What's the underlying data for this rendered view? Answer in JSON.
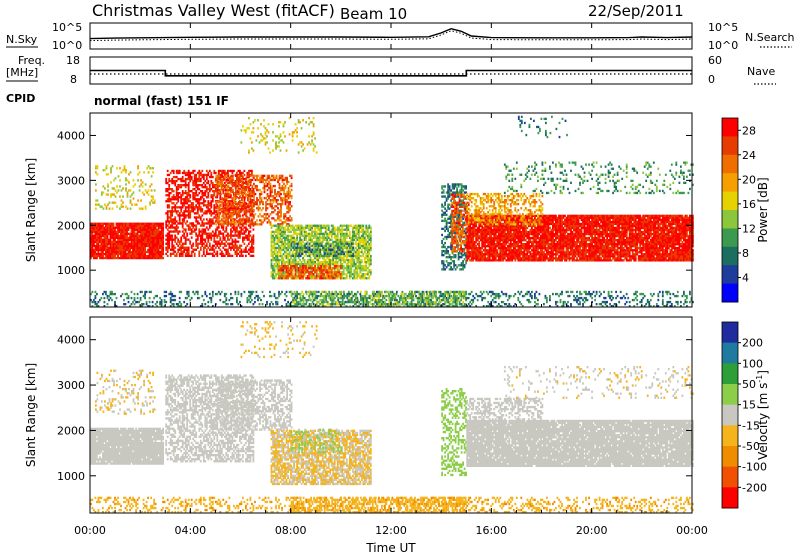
{
  "header": {
    "title": "Christmas Valley West (fitACF)",
    "beam": "Beam 10",
    "date": "22/Sep/2011"
  },
  "left_labels": {
    "nsky": "N.Sky",
    "freq_line1": "Freq.",
    "freq_line2": "[MHz]",
    "cpid": "CPID"
  },
  "right_labels": {
    "nsearch": "N.Search",
    "nave": "Nave"
  },
  "cpid_text": "normal (fast) 151 IF",
  "chart_data": [
    {
      "type": "line",
      "panel": "noise",
      "ylabel_left": "N.Sky",
      "ylabel_right": "N.Search",
      "y_ticks_left": [
        "10^5",
        "10^0"
      ],
      "y_ticks_right": [
        "10^5",
        "10^0"
      ],
      "xlim_hours": [
        0,
        24
      ],
      "series": [
        {
          "name": "N.Sky",
          "x": [
            0,
            1,
            2,
            4,
            6,
            8,
            10,
            12,
            13.5,
            14,
            14.4,
            14.8,
            15.2,
            16,
            18,
            20,
            21.5,
            22,
            23,
            24
          ],
          "y": [
            0.4,
            0.42,
            0.43,
            0.45,
            0.46,
            0.46,
            0.46,
            0.45,
            0.47,
            0.62,
            0.78,
            0.68,
            0.5,
            0.44,
            0.43,
            0.43,
            0.44,
            0.46,
            0.44,
            0.46
          ]
        }
      ]
    },
    {
      "type": "line",
      "panel": "frequency",
      "ylabel_left": "Freq. [MHz]",
      "ylabel_right": "Nave",
      "y_ticks_left": [
        "18",
        "8"
      ],
      "y_ticks_right": [
        "60",
        "0"
      ],
      "xlim_hours": [
        0,
        24
      ],
      "series": [
        {
          "name": "Freq.",
          "x": [
            0,
            3,
            3,
            15,
            15,
            24
          ],
          "y": [
            13,
            13,
            10.5,
            10.5,
            13,
            13
          ]
        },
        {
          "name": "Nave",
          "x": [
            0,
            24
          ],
          "y": [
            20,
            20
          ]
        }
      ]
    },
    {
      "type": "heatmap",
      "panel": "power",
      "ylabel": "Slant Range [km]",
      "colorbar_label": "Power [dB]",
      "colorbar_ticks": [
        "4",
        "8",
        "12",
        "16",
        "20",
        "24",
        "28"
      ],
      "colorbar_range": [
        0,
        30
      ],
      "colors": [
        "#0000ff",
        "#1e3c9c",
        "#1b6e60",
        "#3c9a50",
        "#8cc63c",
        "#e6d200",
        "#f5a000",
        "#f06e00",
        "#e63c00",
        "#ff0000"
      ],
      "ylim": [
        180,
        4500
      ],
      "y_ticks": [
        1000,
        2000,
        3000,
        4000
      ],
      "xlim_hours": [
        0,
        24
      ],
      "regions": [
        {
          "t0": 0,
          "t1": 2.9,
          "r0": 1250,
          "r1": 2050,
          "v": 28,
          "d": 0.95
        },
        {
          "t0": 0.2,
          "t1": 2.6,
          "r0": 2350,
          "r1": 3300,
          "v": 16,
          "d": 0.18
        },
        {
          "t0": 3.0,
          "t1": 6.5,
          "r0": 1300,
          "r1": 3200,
          "v": 28,
          "d": 0.55
        },
        {
          "t0": 5.0,
          "t1": 8.0,
          "r0": 2000,
          "r1": 3100,
          "v": 24,
          "d": 0.5
        },
        {
          "t0": 6.0,
          "t1": 9.0,
          "r0": 3600,
          "r1": 4400,
          "v": 16,
          "d": 0.12
        },
        {
          "t0": 7.2,
          "t1": 11.2,
          "r0": 800,
          "r1": 2000,
          "v": 14,
          "d": 0.75
        },
        {
          "t0": 7.5,
          "t1": 10.0,
          "r0": 800,
          "r1": 1100,
          "v": 24,
          "d": 0.7
        },
        {
          "t0": 8.0,
          "t1": 10.5,
          "r0": 1300,
          "r1": 1600,
          "v": 8,
          "d": 0.35
        },
        {
          "t0": 0,
          "t1": 24,
          "r0": 180,
          "r1": 500,
          "v": 8,
          "d": 0.25
        },
        {
          "t0": 8.0,
          "t1": 15.0,
          "r0": 180,
          "r1": 500,
          "v": 12,
          "d": 0.55
        },
        {
          "t0": 14.0,
          "t1": 15.0,
          "r0": 1000,
          "r1": 2900,
          "v": 8,
          "d": 0.5
        },
        {
          "t0": 14.4,
          "t1": 15.1,
          "r0": 1400,
          "r1": 2700,
          "v": 24,
          "d": 0.55
        },
        {
          "t0": 15.0,
          "t1": 24.0,
          "r0": 1200,
          "r1": 2200,
          "v": 28,
          "d": 0.92
        },
        {
          "t0": 15.0,
          "t1": 18.0,
          "r0": 2000,
          "r1": 2700,
          "v": 20,
          "d": 0.45
        },
        {
          "t0": 16.5,
          "t1": 24.0,
          "r0": 2700,
          "r1": 3400,
          "v": 10,
          "d": 0.15
        },
        {
          "t0": 17.0,
          "t1": 19.0,
          "r0": 3900,
          "r1": 4400,
          "v": 8,
          "d": 0.08
        }
      ]
    },
    {
      "type": "heatmap",
      "panel": "velocity",
      "ylabel": "Slant Range [km]",
      "colorbar_label": "Velocity [m s^-1]",
      "colorbar_ticks": [
        "200",
        "100",
        "50",
        "15",
        "-15",
        "-50",
        "-100",
        "-200"
      ],
      "colorbar_range": [
        -250,
        250
      ],
      "colors": [
        "#1e2c9e",
        "#1f7aa0",
        "#2e9e38",
        "#8ccd4a",
        "#c8c8c0",
        "#f5b41e",
        "#f08c00",
        "#f05000",
        "#ff0000"
      ],
      "ylim": [
        180,
        4500
      ],
      "y_ticks": [
        1000,
        2000,
        3000,
        4000
      ],
      "xlim_hours": [
        0,
        24
      ],
      "regions": [
        {
          "t0": 0,
          "t1": 2.9,
          "r0": 1250,
          "r1": 2050,
          "v": 0,
          "d": 0.95
        },
        {
          "t0": 0.2,
          "t1": 2.6,
          "r0": 2350,
          "r1": 3300,
          "v": -30,
          "d": 0.18
        },
        {
          "t0": 3.0,
          "t1": 6.5,
          "r0": 1300,
          "r1": 3200,
          "v": 0,
          "d": 0.55
        },
        {
          "t0": 5.0,
          "t1": 8.0,
          "r0": 2000,
          "r1": 3100,
          "v": 0,
          "d": 0.5
        },
        {
          "t0": 6.0,
          "t1": 9.0,
          "r0": 3600,
          "r1": 4400,
          "v": -40,
          "d": 0.1
        },
        {
          "t0": 7.2,
          "t1": 11.2,
          "r0": 800,
          "r1": 2000,
          "v": -30,
          "d": 0.75
        },
        {
          "t0": 8.0,
          "t1": 10.0,
          "r0": 1500,
          "r1": 2000,
          "v": 40,
          "d": 0.25
        },
        {
          "t0": 0,
          "t1": 24,
          "r0": 180,
          "r1": 500,
          "v": -70,
          "d": 0.25
        },
        {
          "t0": 8.0,
          "t1": 15.0,
          "r0": 180,
          "r1": 500,
          "v": -70,
          "d": 0.55
        },
        {
          "t0": 14.0,
          "t1": 15.0,
          "r0": 1000,
          "r1": 2900,
          "v": 60,
          "d": 0.4
        },
        {
          "t0": 15.0,
          "t1": 24.0,
          "r0": 1200,
          "r1": 2200,
          "v": 0,
          "d": 0.92
        },
        {
          "t0": 15.0,
          "t1": 18.0,
          "r0": 2000,
          "r1": 2700,
          "v": 0,
          "d": 0.45
        },
        {
          "t0": 16.5,
          "t1": 24.0,
          "r0": 2700,
          "r1": 3400,
          "v": -20,
          "d": 0.12
        }
      ]
    }
  ],
  "x_axis": {
    "label": "Time UT",
    "ticks": [
      "00:00",
      "04:00",
      "08:00",
      "12:00",
      "16:00",
      "20:00",
      "00:00"
    ]
  }
}
